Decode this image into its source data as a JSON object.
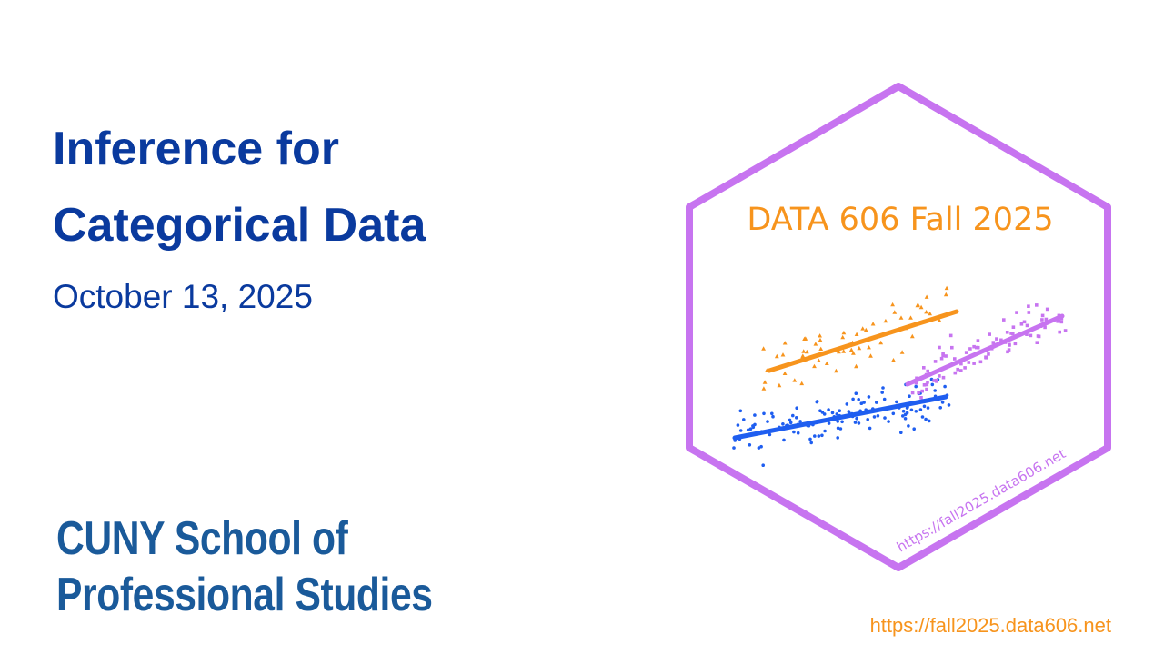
{
  "slide": {
    "title_line1": "Inference for",
    "title_line2": "Categorical Data",
    "date": "October 13, 2025",
    "footer_url": "https://fall2025.data606.net"
  },
  "logo": {
    "line1": "CUNY School of",
    "line2": "Professional Studies",
    "color": "#1a5a9a"
  },
  "sticker": {
    "title": "DATA 606 Fall 2025",
    "url": "https://fall2025.data606.net",
    "border_color": "#c774f0",
    "title_color": "#f7941d",
    "series_colors": [
      "#f7941d",
      "#1f5ef0",
      "#c774f0"
    ]
  },
  "colors": {
    "title": "#0a3a9e",
    "accent": "#f7941d"
  }
}
